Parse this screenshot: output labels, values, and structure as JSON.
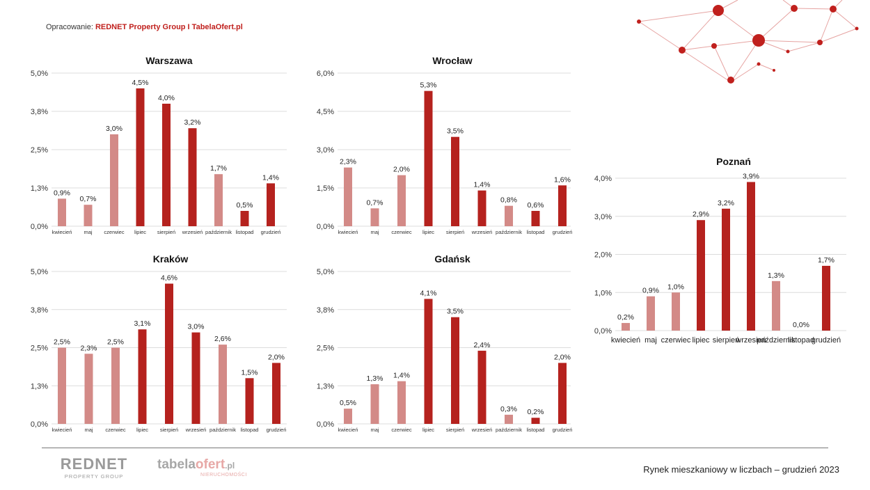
{
  "source": {
    "label": "Opracowanie: ",
    "value": "REDNET Property Group I TabelaOfert.pl"
  },
  "colors": {
    "dark_red": "#b5221e",
    "light_red": "#d38a87",
    "grid": "#dcdcdc",
    "accent": "#c0201d"
  },
  "chart_data": [
    {
      "type": "bar",
      "title": "Warszawa",
      "categories": [
        "kwiecień",
        "maj",
        "czerwiec",
        "lipiec",
        "sierpień",
        "wrzesień",
        "październik",
        "listopad",
        "grudzień"
      ],
      "values": [
        0.9,
        0.7,
        3.0,
        4.5,
        4.0,
        3.2,
        1.7,
        0.5,
        1.4
      ],
      "labels": [
        "0,9%",
        "0,7%",
        "3,0%",
        "4,5%",
        "4,0%",
        "3,2%",
        "1,7%",
        "0,5%",
        "1,4%"
      ],
      "bar_colors": [
        "light",
        "light",
        "light",
        "dark",
        "dark",
        "dark",
        "light",
        "dark",
        "dark"
      ],
      "yticks": [
        0,
        1.25,
        2.5,
        3.75,
        5.0
      ],
      "ytick_labels": [
        "0,0%",
        "1,3%",
        "2,5%",
        "3,8%",
        "5,0%"
      ],
      "ylim": [
        0,
        5.0
      ],
      "grid": true
    },
    {
      "type": "bar",
      "title": "Wrocław",
      "categories": [
        "kwiecień",
        "maj",
        "czerwiec",
        "lipiec",
        "sierpień",
        "wrzesień",
        "październik",
        "listopad",
        "grudzień"
      ],
      "values": [
        2.3,
        0.7,
        2.0,
        5.3,
        3.5,
        1.4,
        0.8,
        0.6,
        1.6
      ],
      "labels": [
        "2,3%",
        "0,7%",
        "2,0%",
        "5,3%",
        "3,5%",
        "1,4%",
        "0,8%",
        "0,6%",
        "1,6%"
      ],
      "bar_colors": [
        "light",
        "light",
        "light",
        "dark",
        "dark",
        "dark",
        "light",
        "dark",
        "dark"
      ],
      "yticks": [
        0,
        1.5,
        3.0,
        4.5,
        6.0
      ],
      "ytick_labels": [
        "0,0%",
        "1,5%",
        "3,0%",
        "4,5%",
        "6,0%"
      ],
      "ylim": [
        0,
        6.0
      ],
      "grid": true
    },
    {
      "type": "bar",
      "title": "Kraków",
      "categories": [
        "kwiecień",
        "maj",
        "czerwiec",
        "lipiec",
        "sierpień",
        "wrzesień",
        "październik",
        "listopad",
        "grudzień"
      ],
      "values": [
        2.5,
        2.3,
        2.5,
        3.1,
        4.6,
        3.0,
        2.6,
        1.5,
        2.0
      ],
      "labels": [
        "2,5%",
        "2,3%",
        "2,5%",
        "3,1%",
        "4,6%",
        "3,0%",
        "2,6%",
        "1,5%",
        "2,0%"
      ],
      "bar_colors": [
        "light",
        "light",
        "light",
        "dark",
        "dark",
        "dark",
        "light",
        "dark",
        "dark"
      ],
      "yticks": [
        0,
        1.25,
        2.5,
        3.75,
        5.0
      ],
      "ytick_labels": [
        "0,0%",
        "1,3%",
        "2,5%",
        "3,8%",
        "5,0%"
      ],
      "ylim": [
        0,
        5.0
      ],
      "grid": true
    },
    {
      "type": "bar",
      "title": "Gdańsk",
      "categories": [
        "kwiecień",
        "maj",
        "czerwiec",
        "lipiec",
        "sierpień",
        "wrzesień",
        "październik",
        "listopad",
        "grudzień"
      ],
      "values": [
        0.5,
        1.3,
        1.4,
        4.1,
        3.5,
        2.4,
        0.3,
        0.2,
        2.0
      ],
      "labels": [
        "0,5%",
        "1,3%",
        "1,4%",
        "4,1%",
        "3,5%",
        "2,4%",
        "0,3%",
        "0,2%",
        "2,0%"
      ],
      "bar_colors": [
        "light",
        "light",
        "light",
        "dark",
        "dark",
        "dark",
        "light",
        "dark",
        "dark"
      ],
      "yticks": [
        0,
        1.25,
        2.5,
        3.75,
        5.0
      ],
      "ytick_labels": [
        "0,0%",
        "1,3%",
        "2,5%",
        "3,8%",
        "5,0%"
      ],
      "ylim": [
        0,
        5.0
      ],
      "grid": true
    },
    {
      "type": "bar",
      "title": "Poznań",
      "categories": [
        "kwiecień",
        "maj",
        "czerwiec",
        "lipiec",
        "sierpień",
        "wrzesień",
        "październik",
        "listopad",
        "grudzień"
      ],
      "values": [
        0.2,
        0.9,
        1.0,
        2.9,
        3.2,
        3.9,
        1.3,
        0.0,
        1.7
      ],
      "labels": [
        "0,2%",
        "0,9%",
        "1,0%",
        "2,9%",
        "3,2%",
        "3,9%",
        "1,3%",
        "0,0%",
        "1,7%"
      ],
      "bar_colors": [
        "light",
        "light",
        "light",
        "dark",
        "dark",
        "dark",
        "light",
        "dark",
        "dark"
      ],
      "yticks": [
        0,
        1.0,
        2.0,
        3.0,
        4.0
      ],
      "ytick_labels": [
        "0,0%",
        "1,0%",
        "2,0%",
        "3,0%",
        "4,0%"
      ],
      "ylim": [
        0,
        4.0
      ],
      "grid": true
    }
  ],
  "footer": {
    "logo_rednet": "REDNET",
    "logo_rednet_sub": "PROPERTY GROUP",
    "logo_tabela_a": "tabela",
    "logo_tabela_b": "ofert",
    "logo_tabela_c": ".pl",
    "logo_tabela_sub": "NIERUCHOMOŚCI",
    "text": "Rynek mieszkaniowy w liczbach – grudzień  2023"
  }
}
